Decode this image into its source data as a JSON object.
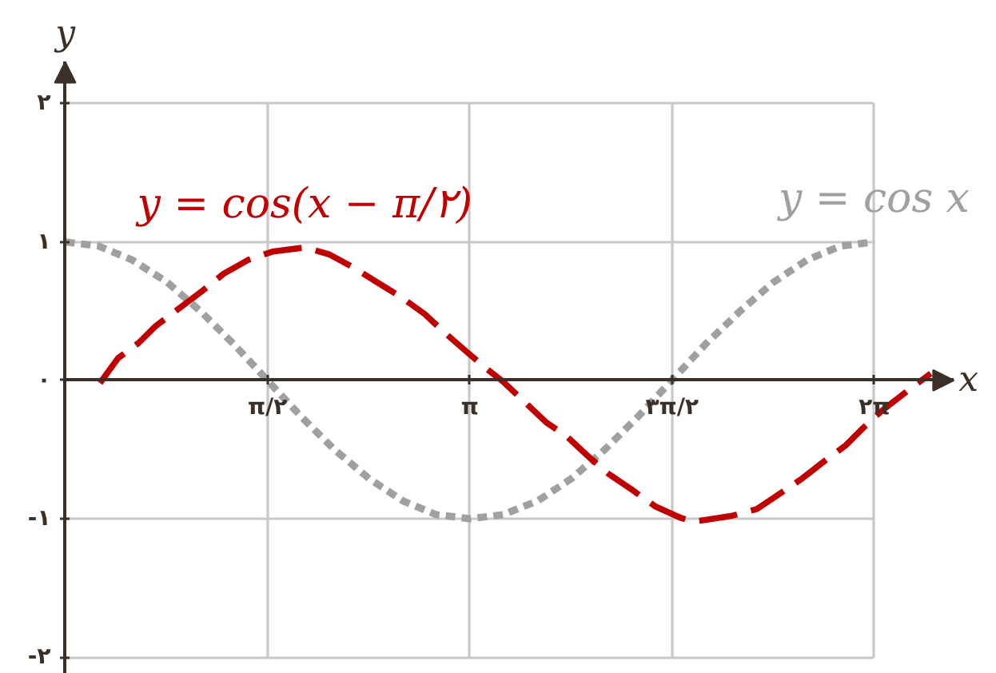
{
  "chart_data": {
    "type": "line",
    "xlabel": "x",
    "ylabel": "y",
    "xlim": [
      -0.5,
      6.9
    ],
    "ylim": [
      -2.12,
      2.3
    ],
    "xticks": [
      {
        "value": 1.571,
        "label": "π/۲"
      },
      {
        "value": 3.142,
        "label": "π"
      },
      {
        "value": 4.712,
        "label": "۳π/۲"
      },
      {
        "value": 6.283,
        "label": "۲π"
      }
    ],
    "yticks": [
      {
        "value": -2,
        "label": "-۲"
      },
      {
        "value": -1,
        "label": "-۱"
      },
      {
        "value": 0,
        "label": "۰"
      },
      {
        "value": 1,
        "label": "۱"
      },
      {
        "value": 2,
        "label": "۲"
      }
    ],
    "grid": true,
    "series": [
      {
        "name": "y = cos x",
        "color": "#a0a0a0",
        "line_style": "dotted",
        "x": [
          0,
          0.26,
          0.52,
          0.79,
          1.05,
          1.31,
          1.57,
          1.83,
          2.09,
          2.36,
          2.62,
          2.88,
          3.14,
          3.4,
          3.67,
          3.93,
          4.19,
          4.45,
          4.71,
          4.97,
          5.24,
          5.5,
          5.76,
          6.02,
          6.28
        ],
        "values": [
          1,
          0.97,
          0.87,
          0.71,
          0.5,
          0.26,
          0,
          -0.26,
          -0.5,
          -0.71,
          -0.87,
          -0.97,
          -1,
          -0.97,
          -0.87,
          -0.71,
          -0.5,
          -0.26,
          0,
          0.26,
          0.5,
          0.71,
          0.87,
          0.97,
          1
        ]
      },
      {
        "name": "y = cos(x − π/۲)",
        "color": "#c00000",
        "line_style": "dashed",
        "x": [
          0.27,
          0.41,
          0.57,
          0.7,
          1.07,
          1.23,
          1.42,
          1.61,
          1.86,
          2.05,
          2.23,
          2.42,
          2.61,
          2.79,
          2.94,
          3.1,
          3.25,
          3.4,
          3.56,
          3.73,
          3.9,
          4.05,
          4.21,
          4.4,
          4.58,
          4.77,
          4.87,
          4.96,
          5.17,
          5.37,
          5.53,
          5.72,
          5.9,
          6.06,
          6.2,
          6.34,
          6.52,
          6.72
        ],
        "values": [
          -0.02,
          0.16,
          0.27,
          0.39,
          0.65,
          0.77,
          0.87,
          0.93,
          0.96,
          0.91,
          0.82,
          0.71,
          0.6,
          0.48,
          0.35,
          0.22,
          0.1,
          -0.01,
          -0.15,
          -0.3,
          -0.41,
          -0.54,
          -0.67,
          -0.79,
          -0.91,
          -0.99,
          -1.02,
          -1.01,
          -0.98,
          -0.93,
          -0.83,
          -0.71,
          -0.58,
          -0.47,
          -0.34,
          -0.22,
          -0.09,
          0.05
        ]
      }
    ]
  }
}
